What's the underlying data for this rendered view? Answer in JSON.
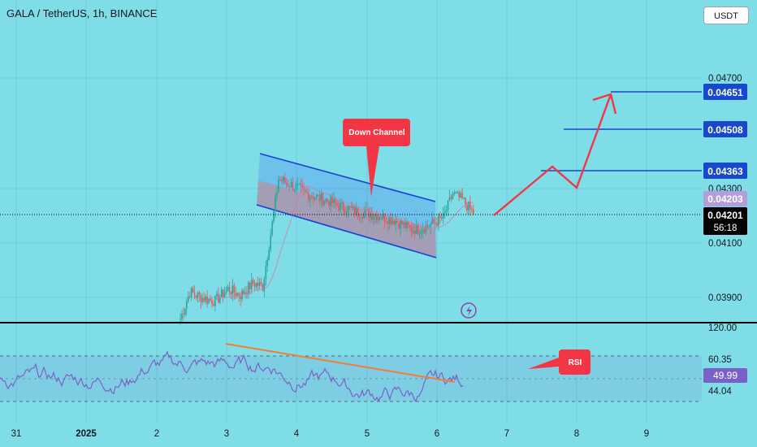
{
  "header": {
    "title": "GALA / TetherUS, 1h, BINANCE",
    "currency": "USDT"
  },
  "chart_data": {
    "type": "candlestick",
    "symbol": "GALA / TetherUS",
    "interval": "1h",
    "exchange": "BINANCE",
    "x_tick_labels": [
      "31",
      "2025",
      "2",
      "3",
      "4",
      "5",
      "6",
      "7",
      "8",
      "9"
    ],
    "price_axis": {
      "ticks": [
        "0.04700",
        "0.04300",
        "0.04100",
        "0.03900"
      ],
      "range": [
        0.0385,
        0.0485
      ]
    },
    "price_labels": [
      {
        "value": "0.04651",
        "color": "#1848cc"
      },
      {
        "value": "0.04508",
        "color": "#1848cc"
      },
      {
        "value": "0.04363",
        "color": "#1848cc"
      },
      {
        "value": "0.04203",
        "color": "#b39ddb"
      },
      {
        "value": "0.04201",
        "color": "#000000"
      }
    ],
    "countdown": "56:18",
    "current_price": 0.04201,
    "candles_ohlc_range": [
      0.0385,
      0.0437
    ],
    "targets": [
      0.04363,
      0.04508,
      0.04651
    ],
    "annotations": {
      "channel": "Down Channel",
      "rsi": "RSI"
    },
    "rsi": {
      "levels": [
        "120.00",
        "60.35",
        "44.04"
      ],
      "current": "49.99",
      "line_color": "#7b61c7"
    },
    "colors": {
      "up": "#26a69a",
      "down": "#ef5350",
      "channel": "#1e40d0",
      "arrow": "#f23645",
      "target": "#1848cc",
      "rsi_trend": "#f47b3b"
    }
  }
}
